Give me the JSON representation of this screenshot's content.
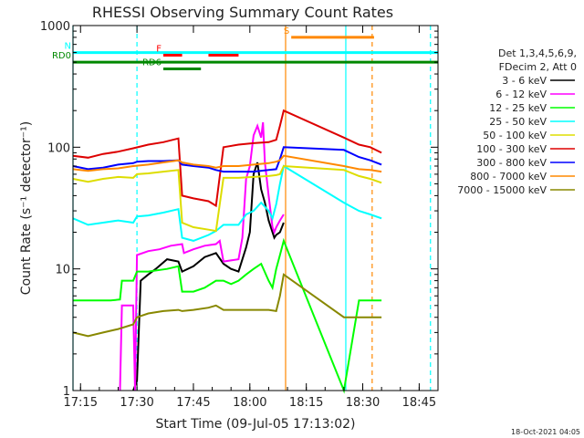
{
  "chart_data": {
    "type": "line",
    "title": "RHESSI Observing Summary Count Rates",
    "xlabel": "Start Time (09-Jul-05 17:13:02)",
    "ylabel": "Count Rate (s⁻¹ detector⁻¹)",
    "x_unit": "minutes after 17:13:02",
    "xlim": [
      0,
      97
    ],
    "ylim": [
      1,
      1000
    ],
    "y_scale": "log",
    "x_ticks": [
      {
        "x": 2,
        "label": "17:15"
      },
      {
        "x": 17,
        "label": "17:30"
      },
      {
        "x": 32,
        "label": "17:45"
      },
      {
        "x": 47,
        "label": "18:00"
      },
      {
        "x": 62,
        "label": "18:15"
      },
      {
        "x": 77,
        "label": "18:30"
      },
      {
        "x": 92,
        "label": "18:45"
      }
    ],
    "y_ticks": [
      {
        "y": 1,
        "label": "1"
      },
      {
        "y": 10,
        "label": "10"
      },
      {
        "y": 100,
        "label": "100"
      },
      {
        "y": 1000,
        "label": "1000"
      }
    ],
    "grid": false,
    "legend_position": "right",
    "legend_header": [
      "Det 1,3,4,5,6,9,",
      "FDecim 2, Att 0"
    ],
    "timestamp": "18-Oct-2021 04:05",
    "series": [
      {
        "name": "3 - 6 keV",
        "color": "#000000",
        "points": [
          [
            16,
            1
          ],
          [
            17,
            1.2
          ],
          [
            18,
            8
          ],
          [
            20,
            9
          ],
          [
            22,
            10
          ],
          [
            25,
            12
          ],
          [
            28,
            11.5
          ],
          [
            29,
            9.5
          ],
          [
            32,
            10.5
          ],
          [
            35,
            12.5
          ],
          [
            38,
            13.5
          ],
          [
            40,
            11
          ],
          [
            42,
            10
          ],
          [
            44,
            9.5
          ],
          [
            46,
            15
          ],
          [
            47,
            20
          ],
          [
            48,
            60
          ],
          [
            49,
            75
          ],
          [
            50,
            45
          ],
          [
            51,
            35
          ],
          [
            52,
            25
          ],
          [
            53,
            20
          ],
          [
            53.5,
            18
          ],
          [
            54,
            19
          ],
          [
            55,
            20
          ],
          [
            56,
            24
          ]
        ]
      },
      {
        "name": "6 - 12 keV",
        "color": "#ff00ff",
        "points": [
          [
            12.5,
            1
          ],
          [
            13,
            5
          ],
          [
            16,
            5
          ],
          [
            16.5,
            1
          ],
          [
            17,
            13
          ],
          [
            20,
            14
          ],
          [
            23,
            14.5
          ],
          [
            26,
            15.5
          ],
          [
            29,
            16
          ],
          [
            29.5,
            13.5
          ],
          [
            32,
            14.5
          ],
          [
            35,
            15.5
          ],
          [
            38,
            16
          ],
          [
            39,
            17
          ],
          [
            40,
            11.5
          ],
          [
            44,
            12
          ],
          [
            45,
            18
          ],
          [
            46,
            55
          ],
          [
            47,
            70
          ],
          [
            48,
            125
          ],
          [
            49,
            150
          ],
          [
            50,
            120
          ],
          [
            50.5,
            160
          ],
          [
            51,
            75
          ],
          [
            52,
            40
          ],
          [
            53,
            22
          ],
          [
            53.5,
            20
          ],
          [
            54,
            22
          ],
          [
            55,
            25
          ],
          [
            56,
            28
          ]
        ]
      },
      {
        "name": "12 - 25 keV",
        "color": "#00ff00",
        "points": [
          [
            0,
            5.5
          ],
          [
            5,
            5.5
          ],
          [
            10,
            5.5
          ],
          [
            12.5,
            5.6
          ],
          [
            13,
            8
          ],
          [
            16,
            8
          ],
          [
            17,
            9.5
          ],
          [
            20,
            9.5
          ],
          [
            25,
            10
          ],
          [
            28,
            10.5
          ],
          [
            29,
            6.5
          ],
          [
            32,
            6.5
          ],
          [
            35,
            7
          ],
          [
            38,
            8
          ],
          [
            40,
            8
          ],
          [
            42,
            7.5
          ],
          [
            44,
            8
          ],
          [
            46,
            9
          ],
          [
            48,
            10
          ],
          [
            50,
            11
          ],
          [
            52,
            8
          ],
          [
            53,
            7
          ],
          [
            54,
            10
          ],
          [
            55,
            13
          ],
          [
            56,
            17
          ],
          [
            72,
            1
          ],
          [
            76,
            5.5
          ],
          [
            79,
            5.5
          ],
          [
            82,
            5.5
          ]
        ]
      },
      {
        "name": "25 - 50 keV",
        "color": "#00ffff",
        "points": [
          [
            0,
            26
          ],
          [
            4,
            23
          ],
          [
            8,
            24
          ],
          [
            12,
            25
          ],
          [
            16,
            24
          ],
          [
            17,
            27
          ],
          [
            20,
            27.5
          ],
          [
            24,
            29
          ],
          [
            28,
            31
          ],
          [
            29,
            18
          ],
          [
            32,
            17
          ],
          [
            36,
            19
          ],
          [
            38,
            20.5
          ],
          [
            40,
            23
          ],
          [
            44,
            23
          ],
          [
            46,
            28
          ],
          [
            48,
            30
          ],
          [
            50,
            35
          ],
          [
            52,
            30
          ],
          [
            53,
            26
          ],
          [
            54,
            34
          ],
          [
            55,
            50
          ],
          [
            56,
            70
          ],
          [
            72,
            35
          ],
          [
            76,
            30
          ],
          [
            79,
            28
          ],
          [
            82,
            26
          ]
        ]
      },
      {
        "name": "50 - 100 keV",
        "color": "#dddd00",
        "points": [
          [
            0,
            55
          ],
          [
            4,
            52
          ],
          [
            8,
            55
          ],
          [
            12,
            57
          ],
          [
            16,
            56
          ],
          [
            17,
            60
          ],
          [
            20,
            61
          ],
          [
            24,
            63
          ],
          [
            28,
            65
          ],
          [
            29,
            24
          ],
          [
            32,
            22
          ],
          [
            36,
            21
          ],
          [
            38,
            20.5
          ],
          [
            40,
            56
          ],
          [
            44,
            56
          ],
          [
            48,
            57
          ],
          [
            52,
            58
          ],
          [
            54,
            59
          ],
          [
            55,
            60
          ],
          [
            56,
            70
          ],
          [
            72,
            65
          ],
          [
            76,
            58
          ],
          [
            79,
            55
          ],
          [
            82,
            51
          ]
        ]
      },
      {
        "name": "100 - 300 keV",
        "color": "#dd0000",
        "points": [
          [
            0,
            85
          ],
          [
            4,
            82
          ],
          [
            8,
            88
          ],
          [
            12,
            92
          ],
          [
            16,
            98
          ],
          [
            20,
            105
          ],
          [
            24,
            110
          ],
          [
            28,
            118
          ],
          [
            29,
            40
          ],
          [
            32,
            38
          ],
          [
            36,
            36
          ],
          [
            38,
            33
          ],
          [
            40,
            100
          ],
          [
            44,
            105
          ],
          [
            48,
            108
          ],
          [
            52,
            110
          ],
          [
            54,
            115
          ],
          [
            55,
            150
          ],
          [
            56,
            200
          ],
          [
            72,
            120
          ],
          [
            76,
            105
          ],
          [
            79,
            100
          ],
          [
            82,
            90
          ]
        ]
      },
      {
        "name": "300 - 800 keV",
        "color": "#0000ff",
        "points": [
          [
            0,
            70
          ],
          [
            4,
            66
          ],
          [
            8,
            68
          ],
          [
            12,
            72
          ],
          [
            16,
            74
          ],
          [
            17,
            76
          ],
          [
            20,
            77
          ],
          [
            24,
            77
          ],
          [
            28,
            78
          ],
          [
            29,
            72
          ],
          [
            32,
            70
          ],
          [
            36,
            68
          ],
          [
            38,
            65
          ],
          [
            40,
            63
          ],
          [
            44,
            63
          ],
          [
            48,
            63
          ],
          [
            52,
            65
          ],
          [
            54,
            66
          ],
          [
            55,
            80
          ],
          [
            56,
            100
          ],
          [
            72,
            95
          ],
          [
            76,
            83
          ],
          [
            79,
            78
          ],
          [
            82,
            72
          ]
        ]
      },
      {
        "name": "800 - 7000 keV",
        "color": "#ff8800",
        "points": [
          [
            0,
            66
          ],
          [
            4,
            64
          ],
          [
            8,
            66
          ],
          [
            12,
            67
          ],
          [
            16,
            70
          ],
          [
            20,
            72
          ],
          [
            24,
            75
          ],
          [
            28,
            78
          ],
          [
            29,
            75
          ],
          [
            32,
            72
          ],
          [
            36,
            70
          ],
          [
            38,
            68
          ],
          [
            40,
            70
          ],
          [
            44,
            70
          ],
          [
            48,
            72
          ],
          [
            52,
            74
          ],
          [
            54,
            76
          ],
          [
            55,
            78
          ],
          [
            56,
            85
          ],
          [
            72,
            70
          ],
          [
            76,
            66
          ],
          [
            79,
            65
          ],
          [
            82,
            63
          ]
        ]
      },
      {
        "name": "7000 - 15000 keV",
        "color": "#888800",
        "points": [
          [
            0,
            3
          ],
          [
            4,
            2.8
          ],
          [
            8,
            3
          ],
          [
            12,
            3.2
          ],
          [
            16,
            3.5
          ],
          [
            17,
            4
          ],
          [
            20,
            4.3
          ],
          [
            24,
            4.5
          ],
          [
            28,
            4.6
          ],
          [
            29,
            4.5
          ],
          [
            32,
            4.6
          ],
          [
            36,
            4.8
          ],
          [
            38,
            5
          ],
          [
            40,
            4.6
          ],
          [
            44,
            4.6
          ],
          [
            48,
            4.6
          ],
          [
            52,
            4.6
          ],
          [
            54,
            4.5
          ],
          [
            55,
            6
          ],
          [
            56,
            9
          ],
          [
            72,
            4
          ],
          [
            76,
            4
          ],
          [
            79,
            4
          ],
          [
            82,
            4
          ]
        ]
      }
    ],
    "annotations": [
      {
        "label": "N",
        "color": "#00ffff",
        "x_start": 0,
        "x_end": 97,
        "y": 600
      },
      {
        "label": "S",
        "color": "#ff8800",
        "x_start": 58,
        "x_end": 80,
        "y": 800
      },
      {
        "label": "F",
        "color": "#ff0000",
        "x_start": 24,
        "x_end": 29,
        "y": 570
      },
      {
        "label": "",
        "color": "#ff0000",
        "x_start": 36,
        "x_end": 44,
        "y": 570
      },
      {
        "label": "RD0",
        "color": "#008800",
        "x_start": 0,
        "x_end": 97,
        "y": 500
      },
      {
        "label": "RD6",
        "color": "#008800",
        "x_start": 24,
        "x_end": 34,
        "y": 440
      }
    ],
    "vlines": [
      {
        "x": 0,
        "color": "#00ffff",
        "style": "solid"
      },
      {
        "x": 17,
        "color": "#00ffff",
        "style": "dash"
      },
      {
        "x": 56.5,
        "color": "#ff8800",
        "style": "solid"
      },
      {
        "x": 72.5,
        "color": "#00ffff",
        "style": "solid"
      },
      {
        "x": 79.5,
        "color": "#ff8800",
        "style": "dash"
      },
      {
        "x": 95,
        "color": "#00ffff",
        "style": "dash"
      }
    ]
  }
}
